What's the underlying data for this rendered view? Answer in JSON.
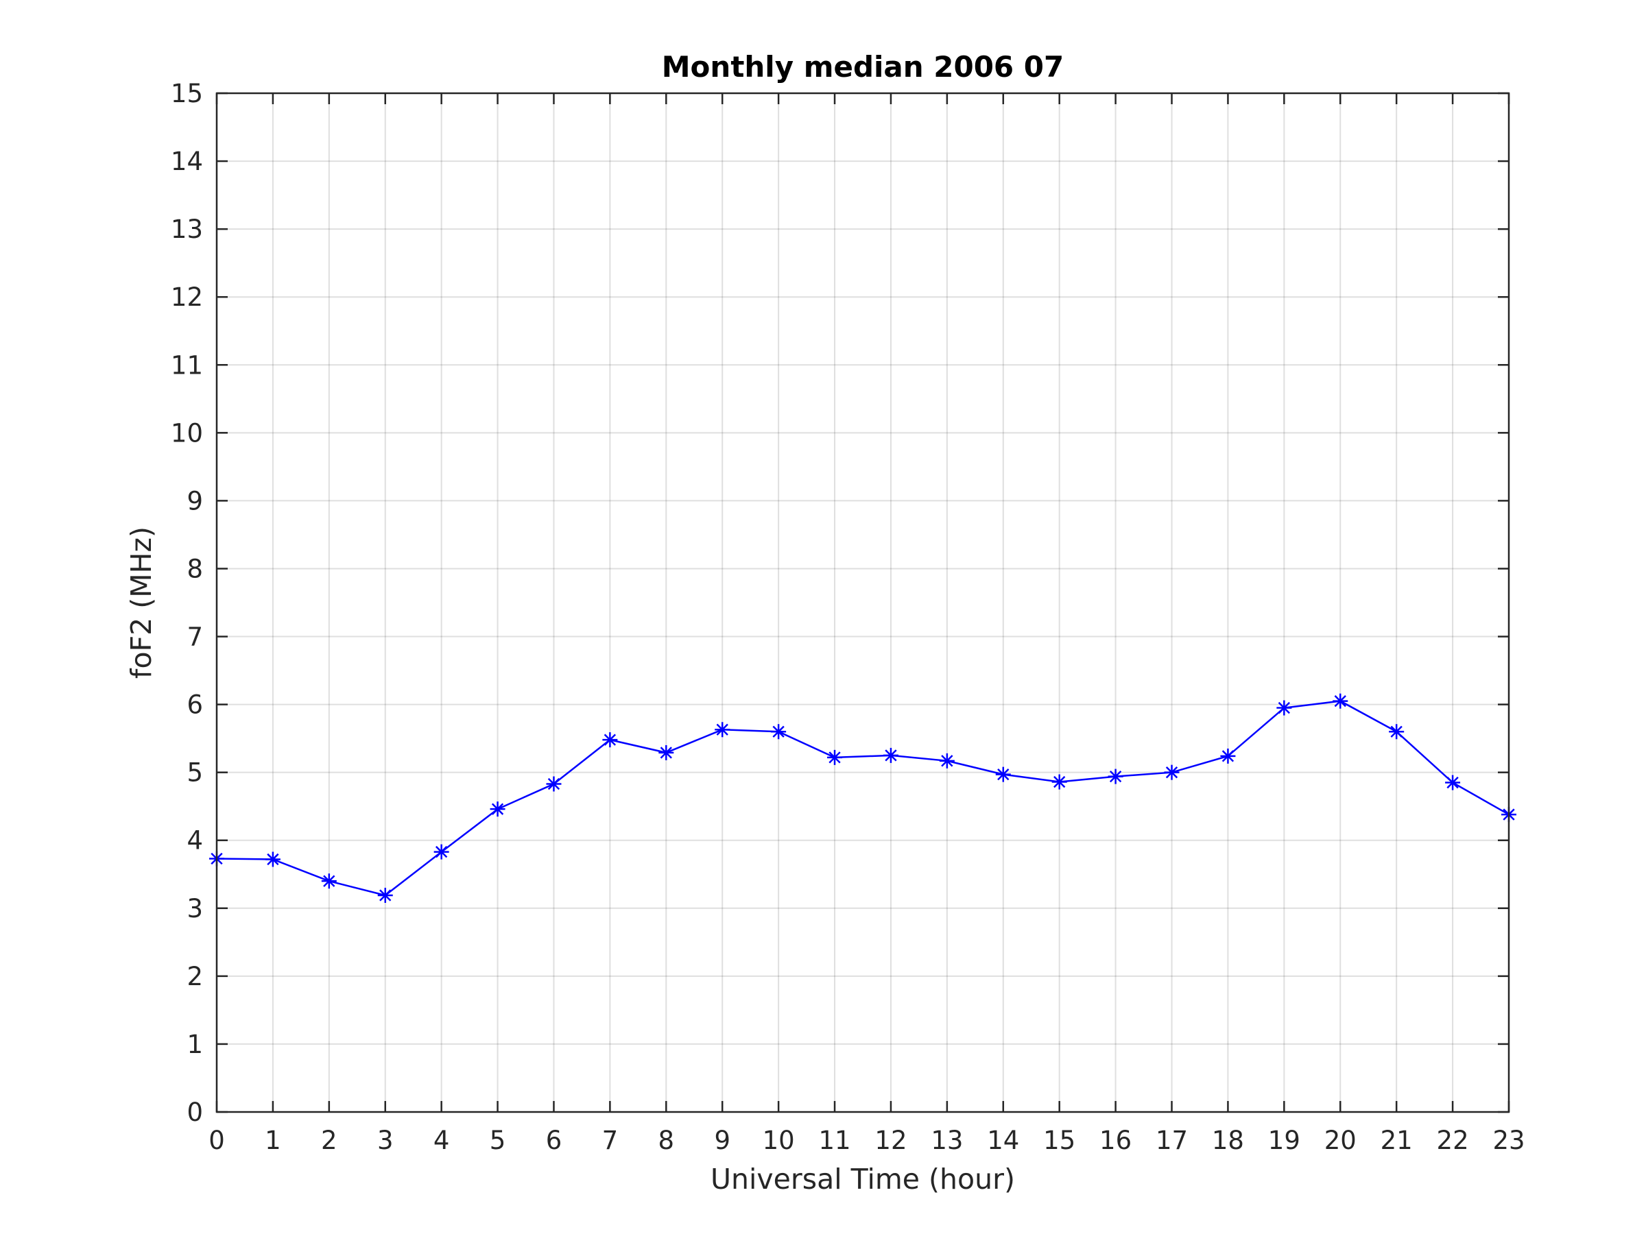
{
  "chart_data": {
    "type": "line",
    "title": "Monthly median 2006 07",
    "xlabel": "Universal Time (hour)",
    "ylabel": "foF2 (MHz)",
    "xlim": [
      0,
      23
    ],
    "ylim": [
      0,
      15
    ],
    "xticks": [
      "0",
      "1",
      "2",
      "3",
      "4",
      "5",
      "6",
      "7",
      "8",
      "9",
      "10",
      "11",
      "12",
      "13",
      "14",
      "15",
      "16",
      "17",
      "18",
      "19",
      "20",
      "21",
      "22",
      "23"
    ],
    "yticks": [
      "0",
      "1",
      "2",
      "3",
      "4",
      "5",
      "6",
      "7",
      "8",
      "9",
      "10",
      "11",
      "12",
      "13",
      "14",
      "15"
    ],
    "grid": true,
    "marker": "asterisk",
    "series": [
      {
        "color": "#0000ff",
        "x": [
          0,
          1,
          2,
          3,
          4,
          5,
          6,
          7,
          8,
          9,
          10,
          11,
          12,
          13,
          14,
          15,
          16,
          17,
          18,
          19,
          20,
          21,
          22,
          23
        ],
        "values": [
          3.73,
          3.72,
          3.4,
          3.19,
          3.83,
          4.46,
          4.83,
          5.48,
          5.29,
          5.63,
          5.6,
          5.22,
          5.25,
          5.17,
          4.97,
          4.86,
          4.94,
          5.0,
          5.24,
          5.95,
          6.05,
          5.6,
          4.85,
          4.38
        ]
      }
    ]
  }
}
